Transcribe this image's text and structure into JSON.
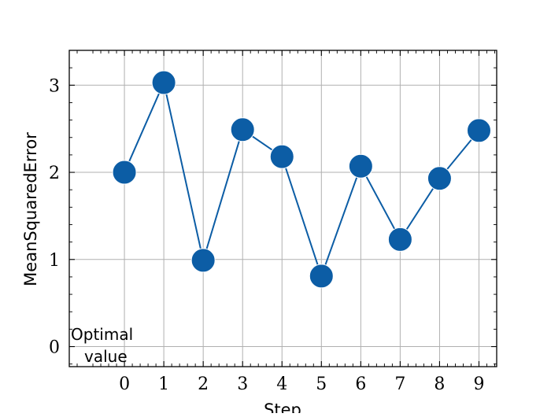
{
  "chart_data": {
    "type": "line",
    "title": "",
    "xlabel": "Step",
    "ylabel": "MeanSquaredError",
    "x": [
      0,
      1,
      2,
      3,
      4,
      5,
      6,
      7,
      8,
      9
    ],
    "series": [
      {
        "values": [
          2.0,
          3.03,
          0.99,
          2.49,
          2.18,
          0.81,
          2.07,
          1.23,
          1.93,
          2.48
        ]
      }
    ],
    "xlim": [
      -1.4,
      9.45
    ],
    "ylim": [
      -0.23,
      3.4
    ],
    "xticks": [
      0,
      1,
      2,
      3,
      4,
      5,
      6,
      7,
      8,
      9
    ],
    "yticks": [
      0,
      1,
      2,
      3
    ],
    "grid": true,
    "annotation": {
      "text_line1": "Optimal",
      "text_line2": "value"
    },
    "colors": {
      "series": "#0c5da5",
      "grid": "#b0b0b0",
      "axes": "#000000"
    }
  }
}
